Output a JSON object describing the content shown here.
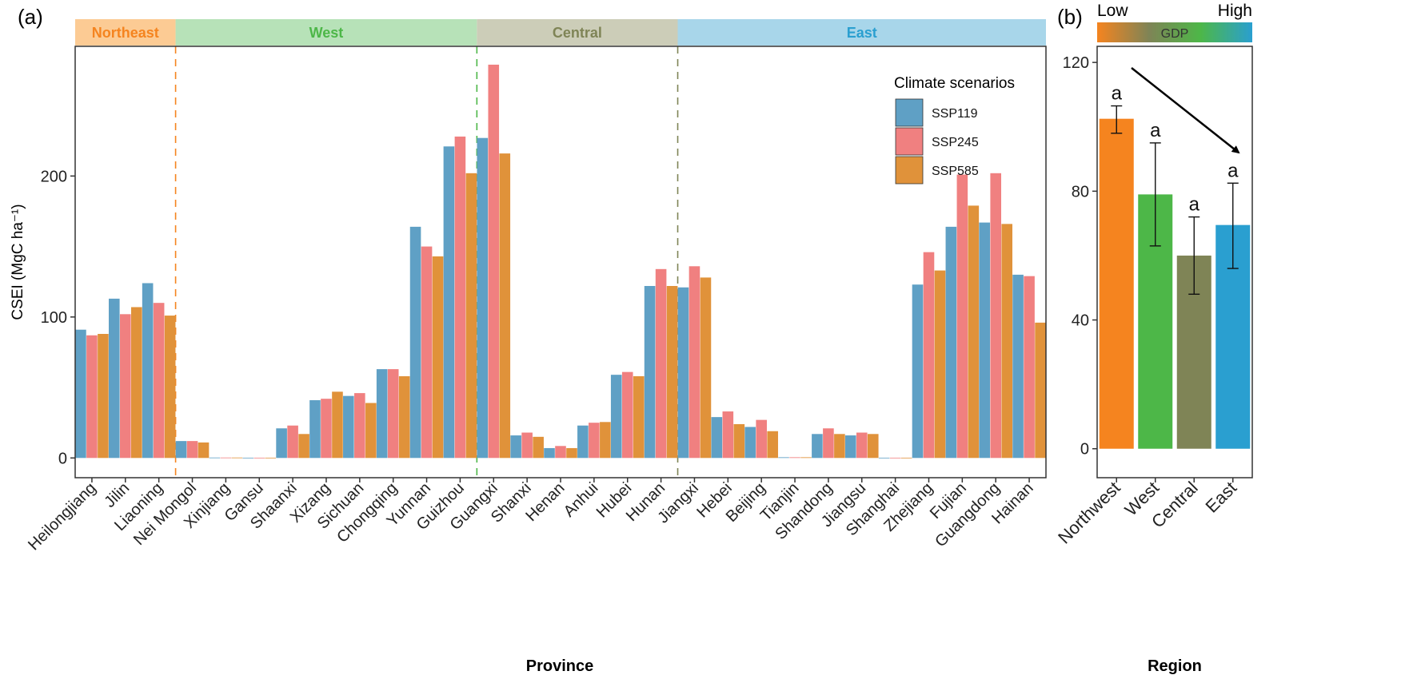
{
  "chart_data": [
    {
      "panel_label": "(a)",
      "type": "bar",
      "xlabel": "Province",
      "ylabel": "CSEI (MgC ha⁻¹)",
      "ylim": [
        -14,
        292
      ],
      "yticks": [
        0,
        100,
        200
      ],
      "grid": false,
      "legend": {
        "title": "Climate scenarios",
        "placement": "top-right"
      },
      "regions": [
        {
          "name": "Northeast",
          "count": 3,
          "strip_color": "#fccb94",
          "text_color": "#f5841f",
          "line_color": "#f5841f"
        },
        {
          "name": "West",
          "count": 9,
          "strip_color": "#b7e2b8",
          "text_color": "#4db748",
          "line_color": "#4db748"
        },
        {
          "name": "Central",
          "count": 6,
          "strip_color": "#cccdb8",
          "text_color": "#7f8456",
          "line_color": "#7f8456"
        },
        {
          "name": "East",
          "count": 11,
          "strip_color": "#a8d6ea",
          "text_color": "#2a9fd0"
        }
      ],
      "categories": [
        "Heilongjiang",
        "Jilin",
        "Liaoning",
        "Nei Mongol",
        "Xinjiang",
        "Gansu",
        "Shaanxi",
        "Xizang",
        "Sichuan",
        "Chongqing",
        "Yunnan",
        "Guizhou",
        "Guangxi",
        "Shanxi",
        "Henan",
        "Anhui",
        "Hubei",
        "Hunan",
        "Jiangxi",
        "Hebei",
        "Beijing",
        "Tianjin",
        "Shandong",
        "Jiangsu",
        "Shanghai",
        "Zhejiang",
        "Fujian",
        "Guangdong",
        "Hainan"
      ],
      "series": [
        {
          "name": "SSP119",
          "color": "#5fa0c5",
          "values": [
            91,
            113,
            124,
            12,
            0.3,
            0.2,
            21,
            41,
            44,
            63,
            164,
            221,
            227,
            16,
            7,
            23,
            59,
            122,
            121,
            29,
            22,
            0.5,
            17,
            16,
            0.2,
            123,
            164,
            167,
            130
          ]
        },
        {
          "name": "SSP245",
          "color": "#f08080",
          "values": [
            87,
            102,
            110,
            12,
            0.3,
            0.2,
            23,
            42,
            46,
            63,
            150,
            228,
            279,
            18,
            8.5,
            25,
            61,
            134,
            136,
            33,
            27,
            0.5,
            21,
            18,
            0.2,
            146,
            201,
            202,
            129
          ]
        },
        {
          "name": "SSP585",
          "color": "#e0923a",
          "values": [
            88,
            107,
            101,
            11,
            0.3,
            0.2,
            17,
            47,
            39,
            58,
            143,
            202,
            216,
            15,
            7,
            25.5,
            58,
            122,
            128,
            24,
            19,
            0.5,
            17,
            17,
            0.2,
            133,
            179,
            166,
            96
          ]
        }
      ]
    },
    {
      "panel_label": "(b)",
      "type": "bar",
      "xlabel": "Region",
      "ylabel": "",
      "ylim": [
        -9,
        125
      ],
      "yticks": [
        0,
        40,
        80,
        120
      ],
      "grid": false,
      "gradient_legend": {
        "low": "Low",
        "high": "High",
        "label": "GDP",
        "colors": [
          "#f5841f",
          "#7f8456",
          "#4db748",
          "#2a9fd0"
        ]
      },
      "categories": [
        "Northwest",
        "West",
        "Central",
        "East"
      ],
      "values": [
        102.5,
        79,
        60,
        69.5
      ],
      "error_low": [
        98,
        63,
        48,
        56
      ],
      "error_high": [
        106.5,
        95,
        72,
        82.5
      ],
      "significance": [
        "a",
        "a",
        "a",
        "a"
      ],
      "colors": [
        "#f5841f",
        "#4db748",
        "#7f8456",
        "#2a9fd0"
      ],
      "annotation": "decreasing-trend-arrow"
    }
  ]
}
